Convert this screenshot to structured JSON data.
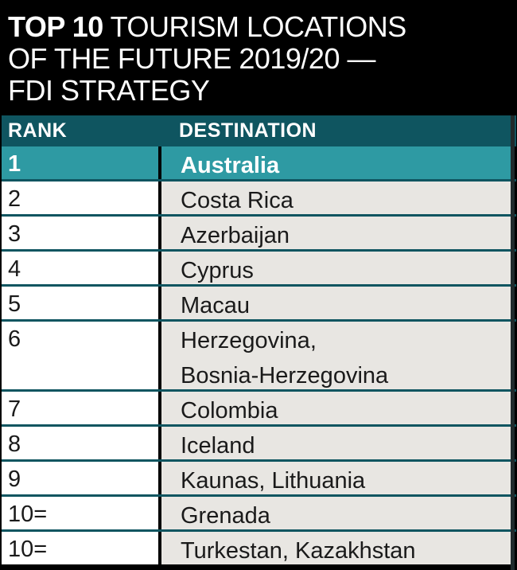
{
  "title": {
    "bold": "TOP 10",
    "line1_rest": " TOURISM LOCATIONS",
    "line2": "OF THE FUTURE 2019/20 —",
    "line3": "FDI STRATEGY"
  },
  "table": {
    "headers": {
      "rank": "RANK",
      "destination": "DESTINATION"
    },
    "rows": [
      {
        "rank": "1",
        "destination": "Australia",
        "destination_line2": ""
      },
      {
        "rank": "2",
        "destination": "Costa Rica",
        "destination_line2": ""
      },
      {
        "rank": "3",
        "destination": "Azerbaijan",
        "destination_line2": ""
      },
      {
        "rank": "4",
        "destination": "Cyprus",
        "destination_line2": ""
      },
      {
        "rank": "5",
        "destination": "Macau",
        "destination_line2": ""
      },
      {
        "rank": "6",
        "destination": "Herzegovina,",
        "destination_line2": "Bosnia-Herzegovina"
      },
      {
        "rank": "7",
        "destination": "Colombia",
        "destination_line2": ""
      },
      {
        "rank": "8",
        "destination": "Iceland",
        "destination_line2": ""
      },
      {
        "rank": "9",
        "destination": "Kaunas, Lithuania",
        "destination_line2": ""
      },
      {
        "rank": "10=",
        "destination": "Grenada",
        "destination_line2": ""
      },
      {
        "rank": "10=",
        "destination": "Turkestan, Kazakhstan",
        "destination_line2": ""
      }
    ]
  },
  "colors": {
    "background": "#000000",
    "header": "#0f5560",
    "highlight": "#2e9aa3",
    "destination_cell": "#e8e6e2",
    "rank_cell": "#ffffff"
  }
}
